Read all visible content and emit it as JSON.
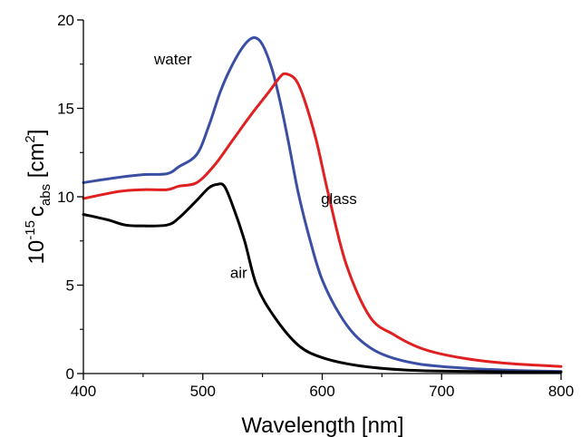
{
  "chart_data": {
    "type": "line",
    "xlabel": "Wavelength [nm]",
    "ylabel": {
      "prefix": "10",
      "exponent": "-15",
      "symbol": "c",
      "subscript": "abs",
      "unit_open": " [cm",
      "unit_exponent": "2",
      "unit_close": "]"
    },
    "xlim": [
      400,
      800
    ],
    "ylim": [
      0,
      20
    ],
    "xticks": [
      400,
      500,
      600,
      700,
      800
    ],
    "xtick_labels": [
      "400",
      "500",
      "600",
      "700",
      "800"
    ],
    "yticks": [
      0,
      5,
      10,
      15,
      20
    ],
    "ytick_labels": [
      "0",
      "5",
      "10",
      "15",
      "20"
    ],
    "grid": false,
    "legend": "none",
    "series": [
      {
        "name": "water",
        "color": "#3a4fa3",
        "x": [
          400,
          430,
          450,
          470,
          480,
          495,
          505,
          515,
          525,
          535,
          543,
          550,
          558,
          565,
          572,
          580,
          590,
          600,
          615,
          630,
          650,
          680,
          720,
          760,
          800
        ],
        "y": [
          10.8,
          11.1,
          11.25,
          11.3,
          11.7,
          12.4,
          14.0,
          16.0,
          17.5,
          18.6,
          19.0,
          18.6,
          17.2,
          15.3,
          13.0,
          10.2,
          7.5,
          5.3,
          3.3,
          2.0,
          1.1,
          0.55,
          0.3,
          0.18,
          0.12
        ]
      },
      {
        "name": "glass",
        "color": "#e02020",
        "x": [
          400,
          430,
          450,
          470,
          480,
          495,
          510,
          525,
          540,
          555,
          565,
          570,
          578,
          585,
          595,
          605,
          620,
          640,
          660,
          680,
          700,
          730,
          760,
          800
        ],
        "y": [
          9.9,
          10.3,
          10.4,
          10.4,
          10.6,
          10.8,
          11.8,
          13.2,
          14.6,
          15.9,
          16.8,
          16.95,
          16.6,
          15.5,
          13.2,
          10.2,
          6.2,
          3.2,
          2.2,
          1.5,
          1.1,
          0.75,
          0.55,
          0.4
        ]
      },
      {
        "name": "air",
        "color": "#000000",
        "x": [
          400,
          420,
          435,
          450,
          470,
          480,
          495,
          505,
          512,
          518,
          525,
          535,
          545,
          560,
          580,
          600,
          630,
          670,
          720,
          800
        ],
        "y": [
          9.0,
          8.7,
          8.4,
          8.35,
          8.4,
          8.8,
          9.8,
          10.5,
          10.7,
          10.6,
          9.5,
          7.5,
          5.0,
          3.2,
          1.6,
          0.9,
          0.45,
          0.2,
          0.12,
          0.08
        ]
      }
    ],
    "annotations": [
      {
        "text": "water",
        "x": 475,
        "y": 17.5
      },
      {
        "text": "glass",
        "x": 614,
        "y": 9.6
      },
      {
        "text": "air",
        "x": 530,
        "y": 5.4
      }
    ]
  }
}
